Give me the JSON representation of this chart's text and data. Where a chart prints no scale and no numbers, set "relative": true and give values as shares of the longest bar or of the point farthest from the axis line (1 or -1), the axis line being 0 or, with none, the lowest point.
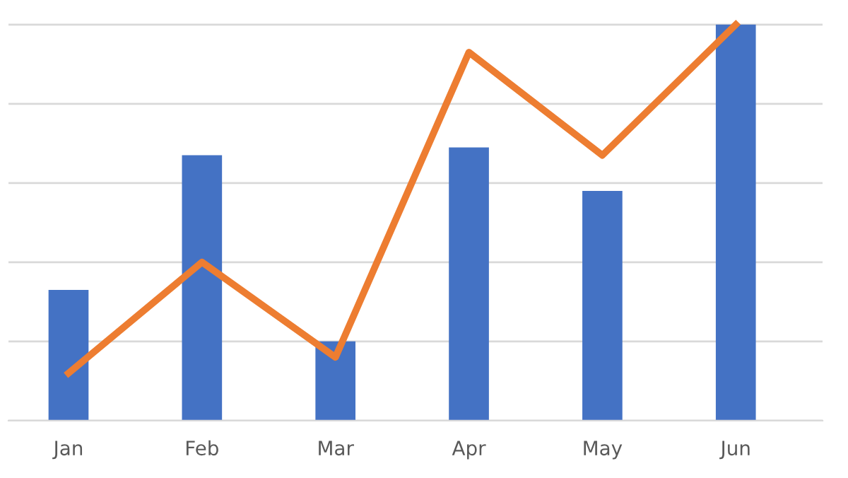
{
  "chart_data": {
    "type": "bar",
    "relative": true,
    "grid": "y",
    "legend": false,
    "categories": [
      "Jan",
      "Feb",
      "Mar",
      "Apr",
      "May",
      "Jun"
    ],
    "series": [
      {
        "color": "#4472c4",
        "values": [
          0.33,
          0.67,
          0.2,
          0.69,
          0.58,
          1
        ]
      },
      {
        "type": "line",
        "color": "#ed7d31",
        "values": [
          0.12,
          0.4,
          0.16,
          0.93,
          0.67,
          1
        ],
        "marker": "none",
        "line_style": "solid"
      }
    ]
  }
}
